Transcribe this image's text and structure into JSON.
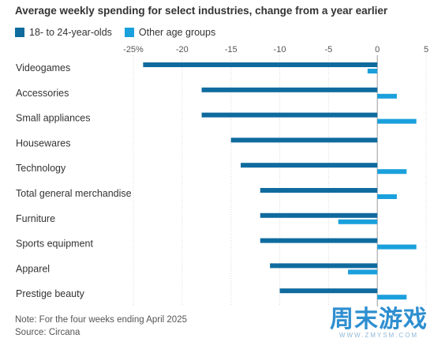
{
  "chart_data": {
    "type": "bar",
    "orientation": "horizontal",
    "title": "Average weekly spending for select industries, change from a year earlier",
    "xlabel": "",
    "ylabel": "",
    "xlim": [
      -25,
      5
    ],
    "x_ticks": [
      -25,
      -20,
      -15,
      -10,
      -5,
      0,
      5
    ],
    "x_tick_labels": [
      "-25%",
      "-20",
      "-15",
      "-10",
      "-5",
      "0",
      "5"
    ],
    "grid": true,
    "legend_position": "top-left",
    "categories": [
      "Videogames",
      "Accessories",
      "Small appliances",
      "Housewares",
      "Technology",
      "Total general merchandise",
      "Furniture",
      "Sports equipment",
      "Apparel",
      "Prestige beauty"
    ],
    "category_labels": [
      "Videogames",
      "Accessories",
      "Small appliances",
      "Housewares",
      "Technology",
      "Total general merchandise",
      "Furniture",
      "Sports equipment",
      "Apparel",
      "Prestige beauty"
    ],
    "series": [
      {
        "name": "18- to 24-year-olds",
        "color": "#0f6b9e",
        "values": [
          -24,
          -18,
          -18,
          -15,
          -14,
          -12,
          -12,
          -12,
          -11,
          -10
        ]
      },
      {
        "name": "Other age groups",
        "color": "#1aa0dc",
        "values": [
          -1,
          2,
          4,
          0,
          3,
          2,
          -4,
          4,
          -3,
          3
        ]
      }
    ]
  },
  "note": "Note: For the four weeks ending April 2025",
  "source": "Source: Circana",
  "watermark": {
    "main": "周末游戏",
    "sub": "WWW.ZMYSM.COM"
  }
}
